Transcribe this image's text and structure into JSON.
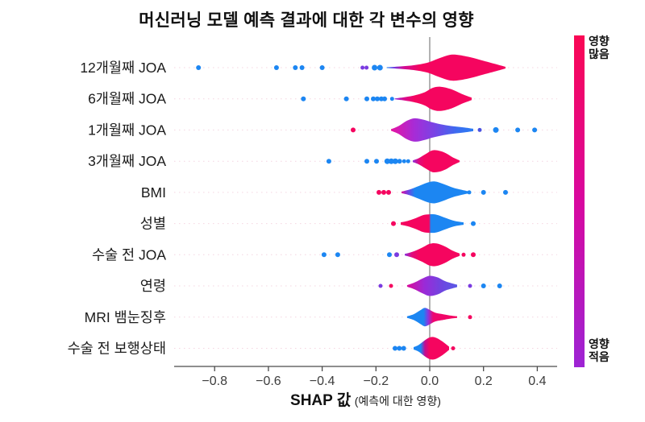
{
  "chart_data": {
    "type": "violin",
    "variant": "shap-summary-violin-with-outlier-points",
    "title": "머신러닝 모델 예측 결과에 대한 각 변수의 영향",
    "xlabel": "SHAP 값",
    "xlabel_note": "(예측에 대한 영향)",
    "xlim": [
      -0.95,
      0.47
    ],
    "xticks": [
      {
        "v": -0.8,
        "label": "−0.8"
      },
      {
        "v": -0.6,
        "label": "−0.6"
      },
      {
        "v": -0.4,
        "label": "−0.4"
      },
      {
        "v": -0.2,
        "label": "−0.2"
      },
      {
        "v": 0.0,
        "label": "0.0"
      },
      {
        "v": 0.2,
        "label": "0.2"
      },
      {
        "v": 0.4,
        "label": "0.4"
      }
    ],
    "categories": [
      "12개월째 JOA",
      "6개월째 JOA",
      "1개월째 JOA",
      "3개월째 JOA",
      "BMI",
      "성별",
      "수술 전 JOA",
      "연령",
      "MRI 뱀눈징후",
      "수술 전 보행상태"
    ],
    "colors": {
      "high": "#f5055f",
      "low": "#1c86f2",
      "purple": "#7a3be0",
      "magenta": "#d90b9b",
      "zero_line": "#a0a0a0",
      "axis": "#4a4a4a",
      "guide": "#edb8cc"
    },
    "colorbar": {
      "label_high": [
        "영향",
        "많음"
      ],
      "label_low": [
        "영향",
        "적음"
      ],
      "gradient": [
        "#fa0754",
        "#d8089f",
        "#9d24d4"
      ]
    },
    "legend_position": "right-colorbar",
    "grid": false,
    "rows": [
      {
        "label": "12개월째 JOA",
        "violin": {
          "profile": [
            [
              -0.16,
              0.5
            ],
            [
              -0.11,
              1.5
            ],
            [
              -0.06,
              3
            ],
            [
              -0.01,
              6
            ],
            [
              0.03,
              11
            ],
            [
              0.07,
              15.5
            ],
            [
              0.1,
              16
            ],
            [
              0.15,
              13
            ],
            [
              0.2,
              8.5
            ],
            [
              0.25,
              4
            ],
            [
              0.282,
              1
            ]
          ],
          "stops": [
            [
              0,
              "#1c86f2"
            ],
            [
              0.06,
              "#6d3be2"
            ],
            [
              0.14,
              "#cf0b96"
            ],
            [
              0.28,
              "#f5055f"
            ],
            [
              1,
              "#f5055f"
            ]
          ]
        },
        "points": [
          [
            -0.86,
            "low",
            3
          ],
          [
            -0.57,
            "low",
            3
          ],
          [
            -0.5,
            "low",
            3
          ],
          [
            -0.475,
            "low",
            3
          ],
          [
            -0.4,
            "low",
            3
          ],
          [
            -0.25,
            "purple",
            2.5
          ],
          [
            -0.235,
            "purple",
            2.5
          ],
          [
            -0.205,
            "low",
            3.5
          ],
          [
            -0.185,
            "low",
            3.5
          ]
        ]
      },
      {
        "label": "6개월째 JOA",
        "violin": {
          "profile": [
            [
              -0.13,
              0.5
            ],
            [
              -0.095,
              2
            ],
            [
              -0.06,
              4
            ],
            [
              -0.02,
              8
            ],
            [
              0.01,
              13.5
            ],
            [
              0.04,
              15
            ],
            [
              0.08,
              12
            ],
            [
              0.12,
              6
            ],
            [
              0.156,
              1.5
            ]
          ],
          "stops": [
            [
              0,
              "#8b2fe0"
            ],
            [
              0.12,
              "#d90b8f"
            ],
            [
              0.26,
              "#f5055f"
            ],
            [
              1,
              "#f5055f"
            ]
          ]
        },
        "points": [
          [
            -0.47,
            "low",
            3
          ],
          [
            -0.31,
            "low",
            3
          ],
          [
            -0.234,
            "low",
            3
          ],
          [
            -0.21,
            "low",
            3
          ],
          [
            -0.195,
            "low",
            3
          ],
          [
            -0.18,
            "low",
            3
          ],
          [
            -0.168,
            "low",
            3
          ],
          [
            -0.14,
            "low",
            2.5
          ]
        ]
      },
      {
        "label": "1개월째 JOA",
        "violin": {
          "profile": [
            [
              -0.144,
              1
            ],
            [
              -0.115,
              5
            ],
            [
              -0.085,
              11.5
            ],
            [
              -0.055,
              14.5
            ],
            [
              -0.02,
              12.5
            ],
            [
              0.01,
              9.5
            ],
            [
              0.05,
              6.5
            ],
            [
              0.09,
              4.5
            ],
            [
              0.13,
              3
            ],
            [
              0.162,
              1.5
            ]
          ],
          "stops": [
            [
              0,
              "#e614a2"
            ],
            [
              0.28,
              "#a82bd6"
            ],
            [
              0.55,
              "#7546e6"
            ],
            [
              0.8,
              "#3b6cf0"
            ],
            [
              1,
              "#2b7cf4"
            ]
          ]
        },
        "points": [
          [
            -0.285,
            "high",
            3
          ],
          [
            0.186,
            "#4a52e0",
            2.5
          ],
          [
            0.246,
            "low",
            3.5
          ],
          [
            0.327,
            "low",
            3
          ],
          [
            0.39,
            "low",
            3
          ]
        ]
      },
      {
        "label": "3개월째 JOA",
        "violin": {
          "profile": [
            [
              -0.063,
              1
            ],
            [
              -0.04,
              4
            ],
            [
              -0.015,
              9
            ],
            [
              0.01,
              13.5
            ],
            [
              0.035,
              13
            ],
            [
              0.06,
              10
            ],
            [
              0.085,
              5
            ],
            [
              0.111,
              1
            ]
          ],
          "stops": [
            [
              0,
              "#8b2fe0"
            ],
            [
              0.13,
              "#e00a7c"
            ],
            [
              0.26,
              "#f5055f"
            ],
            [
              1,
              "#f5055f"
            ]
          ]
        },
        "points": [
          [
            -0.375,
            "low",
            3
          ],
          [
            -0.234,
            "low",
            3
          ],
          [
            -0.198,
            "low",
            3
          ],
          [
            -0.158,
            "low",
            3.5
          ],
          [
            -0.143,
            "low",
            3.5
          ],
          [
            -0.128,
            "low",
            3.5
          ],
          [
            -0.112,
            "low",
            3
          ],
          [
            -0.095,
            "low",
            2.5
          ],
          [
            -0.08,
            "low",
            2.5
          ]
        ]
      },
      {
        "label": "BMI",
        "violin": {
          "profile": [
            [
              -0.105,
              1
            ],
            [
              -0.075,
              3.5
            ],
            [
              -0.04,
              8
            ],
            [
              -0.005,
              12.5
            ],
            [
              0.02,
              13.5
            ],
            [
              0.05,
              10.5
            ],
            [
              0.09,
              5.5
            ],
            [
              0.141,
              1.5
            ]
          ],
          "stops": [
            [
              0,
              "#d90b9b"
            ],
            [
              0.09,
              "#7a3be0"
            ],
            [
              0.2,
              "#1c86f2"
            ],
            [
              1,
              "#1c86f2"
            ]
          ]
        },
        "points": [
          [
            -0.189,
            "high",
            3
          ],
          [
            -0.171,
            "high",
            3
          ],
          [
            -0.153,
            "high",
            3
          ],
          [
            0.147,
            "low",
            2.5
          ],
          [
            0.2,
            "low",
            3
          ],
          [
            0.282,
            "low",
            3
          ]
        ]
      },
      {
        "label": "성별",
        "violin": {
          "profile": [
            [
              -0.108,
              1.5
            ],
            [
              -0.08,
              3.5
            ],
            [
              -0.05,
              7
            ],
            [
              -0.025,
              10.5
            ],
            [
              0.0,
              11.5
            ],
            [
              0.025,
              11
            ],
            [
              0.055,
              7.5
            ],
            [
              0.09,
              3.5
            ],
            [
              0.126,
              1.5
            ]
          ],
          "stops": [
            [
              0,
              "#f5055f"
            ],
            [
              0.45,
              "#f5055f"
            ],
            [
              0.48,
              "#1c86f2"
            ],
            [
              1,
              "#1c86f2"
            ]
          ]
        },
        "points": [
          [
            -0.135,
            "high",
            3
          ],
          [
            0.162,
            "low",
            3
          ]
        ]
      },
      {
        "label": "수술 전 JOA",
        "violin": {
          "profile": [
            [
              -0.093,
              1
            ],
            [
              -0.065,
              3.5
            ],
            [
              -0.03,
              8.5
            ],
            [
              0.0,
              13.5
            ],
            [
              0.025,
              14
            ],
            [
              0.055,
              10.5
            ],
            [
              0.085,
              5
            ],
            [
              0.111,
              1.5
            ]
          ],
          "stops": [
            [
              0,
              "#8b2fe0"
            ],
            [
              0.13,
              "#e00a7c"
            ],
            [
              0.27,
              "#f5055f"
            ],
            [
              1,
              "#f5055f"
            ]
          ]
        },
        "points": [
          [
            -0.393,
            "low",
            3
          ],
          [
            -0.342,
            "low",
            3
          ],
          [
            -0.15,
            "low",
            3
          ],
          [
            -0.123,
            "purple",
            3
          ],
          [
            0.126,
            "high",
            2.5
          ],
          [
            0.162,
            "high",
            3
          ]
        ]
      },
      {
        "label": "연령",
        "violin": {
          "profile": [
            [
              -0.084,
              1
            ],
            [
              -0.055,
              4.5
            ],
            [
              -0.025,
              9.5
            ],
            [
              0.0,
              12.5
            ],
            [
              0.03,
              10.5
            ],
            [
              0.06,
              5.5
            ],
            [
              0.102,
              1.5
            ]
          ],
          "stops": [
            [
              0,
              "#d90b9b"
            ],
            [
              0.35,
              "#9a2bd8"
            ],
            [
              0.7,
              "#6d46e0"
            ],
            [
              1,
              "#5b5ae6"
            ]
          ]
        },
        "points": [
          [
            -0.183,
            "purple",
            2.5
          ],
          [
            -0.144,
            "high",
            2.5
          ],
          [
            0.15,
            "purple",
            2.5
          ],
          [
            0.2,
            "low",
            3
          ],
          [
            0.26,
            "low",
            3
          ]
        ]
      },
      {
        "label": "MRI 뱀눈징후",
        "violin": {
          "profile": [
            [
              -0.084,
              1
            ],
            [
              -0.06,
              3.5
            ],
            [
              -0.035,
              8.5
            ],
            [
              -0.018,
              11.5
            ],
            [
              0.0,
              9
            ],
            [
              0.02,
              5.5
            ],
            [
              0.05,
              3.5
            ],
            [
              0.075,
              2
            ],
            [
              0.102,
              1
            ]
          ],
          "stops": [
            [
              0,
              "#1c86f2"
            ],
            [
              0.33,
              "#1c86f2"
            ],
            [
              0.42,
              "#8b35e0"
            ],
            [
              0.52,
              "#ee0670"
            ],
            [
              1,
              "#f5055f"
            ]
          ]
        },
        "points": [
          [
            0.15,
            "high",
            2.5
          ]
        ]
      },
      {
        "label": "수술 전 보행상태",
        "violin": {
          "profile": [
            [
              -0.06,
              1.5
            ],
            [
              -0.042,
              4
            ],
            [
              -0.02,
              9.5
            ],
            [
              0.0,
              13.5
            ],
            [
              0.02,
              13.5
            ],
            [
              0.045,
              9
            ],
            [
              0.072,
              2
            ]
          ],
          "stops": [
            [
              0,
              "#1c86f2"
            ],
            [
              0.2,
              "#1c86f2"
            ],
            [
              0.32,
              "#c20b92"
            ],
            [
              0.45,
              "#f5055f"
            ],
            [
              1,
              "#f5055f"
            ]
          ]
        },
        "points": [
          [
            -0.129,
            "low",
            3
          ],
          [
            -0.113,
            "low",
            3
          ],
          [
            -0.097,
            "low",
            3
          ],
          [
            0.087,
            "high",
            2.5
          ]
        ]
      }
    ]
  }
}
